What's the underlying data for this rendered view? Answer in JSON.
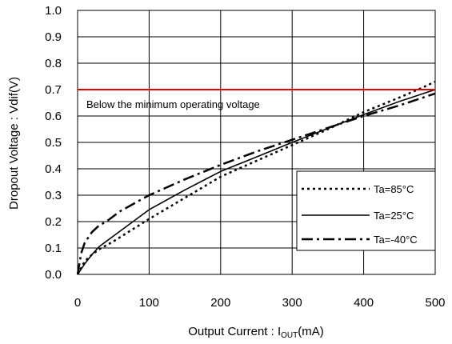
{
  "chart_data": {
    "type": "line",
    "xlabel_main": "Output Current : I",
    "xlabel_sub": "OUT",
    "xlabel_unit": "(mA)",
    "ylabel": "Dropout Voltage : Vdif(V)",
    "xlim": [
      0,
      500
    ],
    "ylim": [
      0,
      1.0
    ],
    "x_ticks": [
      0,
      100,
      200,
      300,
      400,
      500
    ],
    "x_tick_labels": [
      "0",
      "100",
      "200",
      "300",
      "400",
      "500"
    ],
    "y_ticks": [
      0,
      0.1,
      0.2,
      0.3,
      0.4,
      0.5,
      0.6,
      0.7,
      0.8,
      0.9,
      1.0
    ],
    "y_tick_labels": [
      "0.0",
      "0.1",
      "0.2",
      "0.3",
      "0.4",
      "0.5",
      "0.6",
      "0.7",
      "0.8",
      "0.9",
      "1.0"
    ],
    "grid": true,
    "legend_position": "right",
    "reference_line": {
      "y": 0.7,
      "color": "#e00000",
      "label": "Below the minimum operating voltage"
    },
    "series": [
      {
        "name": "Ta=85°C",
        "style": "dotted",
        "color": "#000000",
        "x": [
          0,
          10,
          20,
          30,
          50,
          100,
          150,
          200,
          250,
          300,
          350,
          400,
          450,
          480,
          500
        ],
        "y": [
          0.0,
          0.05,
          0.075,
          0.095,
          0.125,
          0.21,
          0.29,
          0.37,
          0.43,
          0.49,
          0.55,
          0.615,
          0.67,
          0.705,
          0.73
        ]
      },
      {
        "name": "Ta=25°C",
        "style": "solid",
        "color": "#000000",
        "x": [
          0,
          10,
          20,
          30,
          50,
          100,
          150,
          200,
          250,
          300,
          350,
          400,
          450,
          500
        ],
        "y": [
          0.0,
          0.04,
          0.075,
          0.105,
          0.145,
          0.245,
          0.32,
          0.39,
          0.445,
          0.5,
          0.553,
          0.605,
          0.655,
          0.7
        ]
      },
      {
        "name": "Ta=-40°C",
        "style": "dashdot",
        "color": "#000000",
        "x": [
          0,
          5,
          10,
          20,
          30,
          40,
          60,
          100,
          150,
          200,
          250,
          300,
          350,
          400,
          450,
          500
        ],
        "y": [
          0.0,
          0.08,
          0.12,
          0.16,
          0.185,
          0.2,
          0.24,
          0.3,
          0.36,
          0.415,
          0.465,
          0.51,
          0.555,
          0.6,
          0.64,
          0.685
        ]
      }
    ]
  }
}
